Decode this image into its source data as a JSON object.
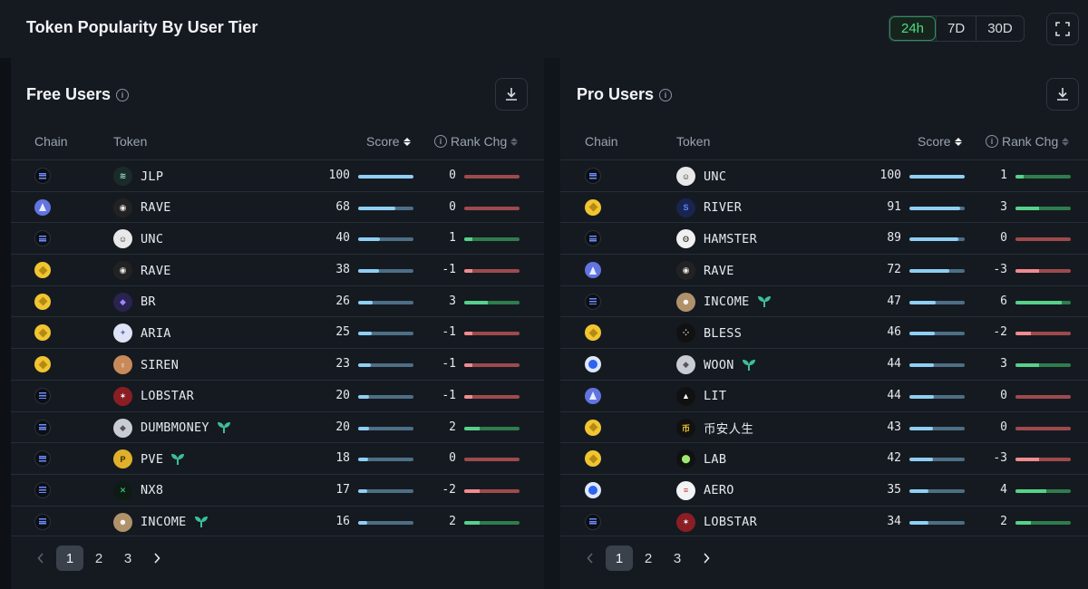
{
  "header": {
    "title": "Token Popularity By User Tier",
    "ranges": [
      "24h",
      "7D",
      "30D"
    ],
    "active_range": "24h"
  },
  "columns": {
    "chain": "Chain",
    "token": "Token",
    "score": "Score",
    "rank": "Rank Chg"
  },
  "colors": {
    "score_fill": "#8fcff3",
    "rank_up": "#57d18a",
    "rank_down": "#f08b8e",
    "active_range": "#4ade80"
  },
  "panels": [
    {
      "title": "Free Users",
      "rows": [
        {
          "chain": "solana",
          "token": "JLP",
          "score": 100,
          "rank": 0,
          "icon": "jlp-icon",
          "new": false
        },
        {
          "chain": "ethereum",
          "token": "RAVE",
          "score": 68,
          "rank": 0,
          "icon": "rave-icon",
          "new": false
        },
        {
          "chain": "solana",
          "token": "UNC",
          "score": 40,
          "rank": 1,
          "icon": "unc-icon",
          "new": false
        },
        {
          "chain": "bsc",
          "token": "RAVE",
          "score": 38,
          "rank": -1,
          "icon": "rave-icon",
          "new": false
        },
        {
          "chain": "bsc",
          "token": "BR",
          "score": 26,
          "rank": 3,
          "icon": "br-icon",
          "new": false
        },
        {
          "chain": "bsc",
          "token": "ARIA",
          "score": 25,
          "rank": -1,
          "icon": "aria-icon",
          "new": false
        },
        {
          "chain": "bsc",
          "token": "SIREN",
          "score": 23,
          "rank": -1,
          "icon": "siren-icon",
          "new": false
        },
        {
          "chain": "solana",
          "token": "LOBSTAR",
          "score": 20,
          "rank": -1,
          "icon": "lobstar-icon",
          "new": false
        },
        {
          "chain": "solana",
          "token": "DUMBMONEY",
          "score": 20,
          "rank": 2,
          "icon": "dumbmoney-icon",
          "new": true
        },
        {
          "chain": "solana",
          "token": "PVE",
          "score": 18,
          "rank": 0,
          "icon": "pve-icon",
          "new": true
        },
        {
          "chain": "solana",
          "token": "NX8",
          "score": 17,
          "rank": -2,
          "icon": "nx8-icon",
          "new": false
        },
        {
          "chain": "solana",
          "token": "INCOME",
          "score": 16,
          "rank": 2,
          "icon": "income-icon",
          "new": true
        }
      ],
      "pages": [
        "1",
        "2",
        "3"
      ],
      "current_page": "1"
    },
    {
      "title": "Pro Users",
      "rows": [
        {
          "chain": "solana",
          "token": "UNC",
          "score": 100,
          "rank": 1,
          "icon": "unc-icon",
          "new": false
        },
        {
          "chain": "bsc",
          "token": "RIVER",
          "score": 91,
          "rank": 3,
          "icon": "river-icon",
          "new": false
        },
        {
          "chain": "solana",
          "token": "HAMSTER",
          "score": 89,
          "rank": 0,
          "icon": "hamster-icon",
          "new": false
        },
        {
          "chain": "ethereum",
          "token": "RAVE",
          "score": 72,
          "rank": -3,
          "icon": "rave-icon",
          "new": false
        },
        {
          "chain": "solana",
          "token": "INCOME",
          "score": 47,
          "rank": 6,
          "icon": "income-icon",
          "new": true
        },
        {
          "chain": "bsc",
          "token": "BLESS",
          "score": 46,
          "rank": -2,
          "icon": "bless-icon",
          "new": false
        },
        {
          "chain": "base",
          "token": "WOON",
          "score": 44,
          "rank": 3,
          "icon": "woon-icon",
          "new": true
        },
        {
          "chain": "ethereum",
          "token": "LIT",
          "score": 44,
          "rank": 0,
          "icon": "lit-icon",
          "new": false
        },
        {
          "chain": "bsc",
          "token": "币安人生",
          "score": 43,
          "rank": 0,
          "icon": "binance-life-icon",
          "new": false
        },
        {
          "chain": "bsc",
          "token": "LAB",
          "score": 42,
          "rank": -3,
          "icon": "lab-icon",
          "new": false
        },
        {
          "chain": "base",
          "token": "AERO",
          "score": 35,
          "rank": 4,
          "icon": "aero-icon",
          "new": false
        },
        {
          "chain": "solana",
          "token": "LOBSTAR",
          "score": 34,
          "rank": 2,
          "icon": "lobstar-icon",
          "new": false
        }
      ],
      "pages": [
        "1",
        "2",
        "3"
      ],
      "current_page": "1"
    }
  ]
}
